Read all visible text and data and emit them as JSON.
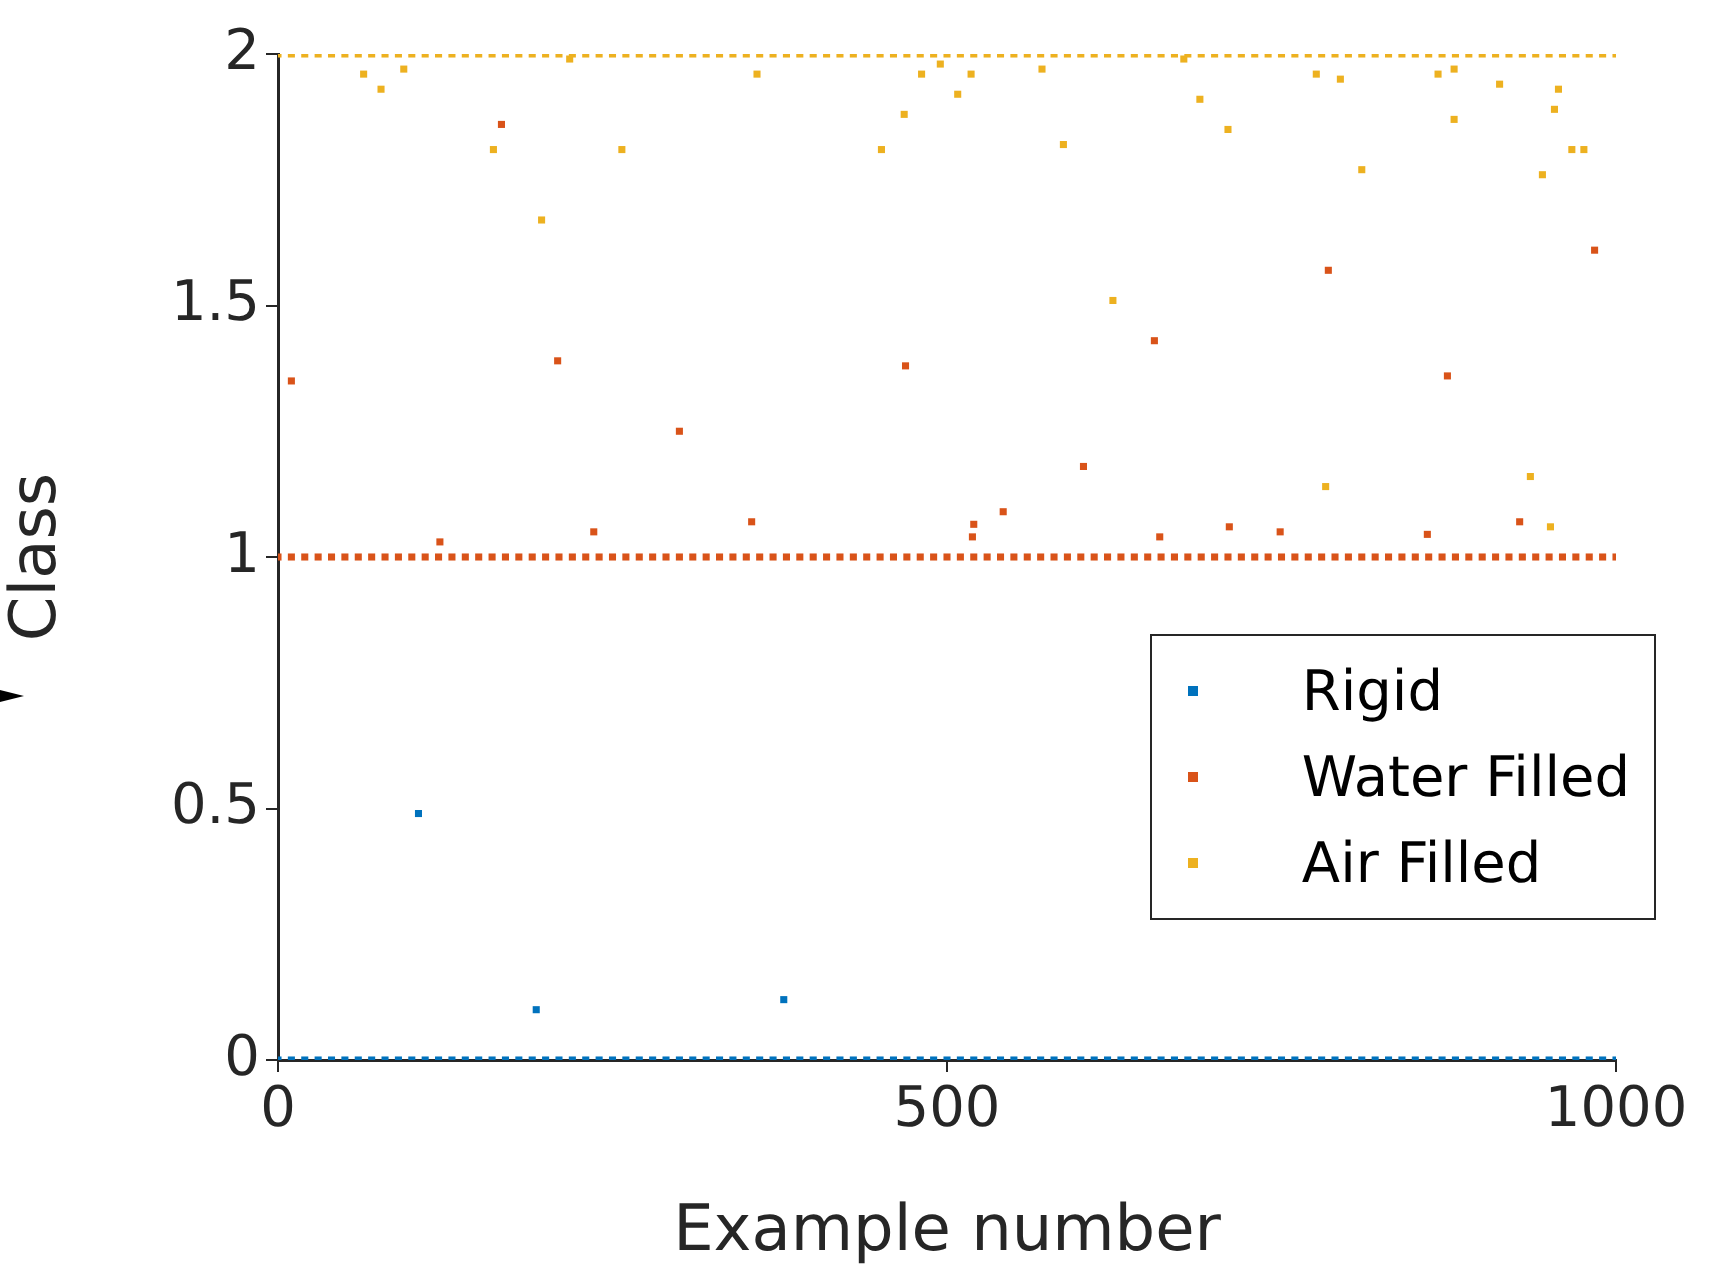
{
  "chart_data": {
    "type": "scatter",
    "xlabel": "Example number",
    "ylabel": "Class",
    "xlim": [
      0,
      1000
    ],
    "ylim": [
      0,
      2
    ],
    "xticks": [
      0,
      500,
      1000
    ],
    "yticks": [
      0,
      0.5,
      1,
      1.5,
      2
    ],
    "grid": false,
    "legend": "bottom right",
    "marker": "square",
    "series": [
      {
        "name": "Rigid",
        "color": "#0072bd",
        "x": [
          0,
          10,
          20,
          30,
          40,
          50,
          60,
          70,
          80,
          90,
          100,
          110,
          120,
          130,
          140,
          150,
          160,
          170,
          180,
          190,
          200,
          210,
          220,
          230,
          240,
          250,
          260,
          270,
          280,
          290,
          300,
          310,
          320,
          330,
          340,
          350,
          360,
          370,
          380,
          390,
          400,
          410,
          420,
          430,
          440,
          450,
          460,
          470,
          480,
          490,
          500,
          510,
          520,
          530,
          540,
          550,
          560,
          570,
          580,
          590,
          600,
          610,
          620,
          630,
          640,
          650,
          660,
          670,
          680,
          690,
          700,
          710,
          720,
          730,
          740,
          750,
          760,
          770,
          780,
          790,
          800,
          810,
          820,
          830,
          840,
          850,
          860,
          870,
          880,
          890,
          900,
          910,
          920,
          930,
          940,
          950,
          960,
          970,
          980,
          990,
          1000,
          105,
          193,
          378
        ],
        "values": [
          0,
          0,
          0,
          0,
          0,
          0,
          0,
          0,
          0,
          0,
          0,
          0,
          0,
          0,
          0,
          0,
          0,
          0,
          0,
          0,
          0,
          0,
          0,
          0,
          0,
          0,
          0,
          0,
          0,
          0,
          0,
          0,
          0,
          0,
          0,
          0,
          0,
          0,
          0,
          0,
          0,
          0,
          0,
          0,
          0,
          0,
          0,
          0,
          0,
          0,
          0,
          0,
          0,
          0,
          0,
          0,
          0,
          0,
          0,
          0,
          0,
          0,
          0,
          0,
          0,
          0,
          0,
          0,
          0,
          0,
          0,
          0,
          0,
          0,
          0,
          0,
          0,
          0,
          0,
          0,
          0,
          0,
          0,
          0,
          0,
          0,
          0,
          0,
          0,
          0,
          0,
          0,
          0,
          0,
          0,
          0,
          0,
          0,
          0,
          0,
          0,
          0.49,
          0.1,
          0.12
        ]
      },
      {
        "name": "Water Filled",
        "color": "#d95319",
        "x": [
          0,
          10,
          20,
          30,
          40,
          50,
          60,
          70,
          80,
          90,
          100,
          110,
          120,
          130,
          140,
          150,
          160,
          170,
          180,
          190,
          200,
          210,
          220,
          230,
          240,
          250,
          260,
          270,
          280,
          290,
          300,
          310,
          320,
          330,
          340,
          350,
          360,
          370,
          380,
          390,
          400,
          410,
          420,
          430,
          440,
          450,
          460,
          470,
          480,
          490,
          500,
          510,
          520,
          530,
          540,
          550,
          560,
          570,
          580,
          590,
          600,
          610,
          620,
          630,
          640,
          650,
          660,
          670,
          680,
          690,
          700,
          710,
          720,
          730,
          740,
          750,
          760,
          770,
          780,
          790,
          800,
          810,
          820,
          830,
          840,
          850,
          860,
          870,
          880,
          890,
          900,
          910,
          920,
          930,
          940,
          950,
          960,
          970,
          980,
          990,
          1000,
          10,
          209,
          300,
          167,
          469,
          785,
          655,
          874,
          984,
          602,
          121,
          236,
          354,
          520,
          519,
          542,
          659,
          711,
          749,
          859,
          928
        ],
        "values": [
          1,
          1,
          1,
          1,
          1,
          1,
          1,
          1,
          1,
          1,
          1,
          1,
          1,
          1,
          1,
          1,
          1,
          1,
          1,
          1,
          1,
          1,
          1,
          1,
          1,
          1,
          1,
          1,
          1,
          1,
          1,
          1,
          1,
          1,
          1,
          1,
          1,
          1,
          1,
          1,
          1,
          1,
          1,
          1,
          1,
          1,
          1,
          1,
          1,
          1,
          1,
          1,
          1,
          1,
          1,
          1,
          1,
          1,
          1,
          1,
          1,
          1,
          1,
          1,
          1,
          1,
          1,
          1,
          1,
          1,
          1,
          1,
          1,
          1,
          1,
          1,
          1,
          1,
          1,
          1,
          1,
          1,
          1,
          1,
          1,
          1,
          1,
          1,
          1,
          1,
          1,
          1,
          1,
          1,
          1,
          1,
          1,
          1,
          1,
          1,
          1,
          1.35,
          1.39,
          1.25,
          1.86,
          1.38,
          1.57,
          1.43,
          1.36,
          1.61,
          1.18,
          1.03,
          1.05,
          1.07,
          1.065,
          1.04,
          1.09,
          1.04,
          1.06,
          1.05,
          1.045,
          1.07
        ]
      },
      {
        "name": "Air Filled",
        "color": "#edb120",
        "x": [
          0,
          10,
          20,
          30,
          40,
          50,
          60,
          70,
          80,
          90,
          100,
          110,
          120,
          130,
          140,
          150,
          160,
          170,
          180,
          190,
          200,
          210,
          220,
          230,
          240,
          250,
          260,
          270,
          280,
          290,
          300,
          310,
          320,
          330,
          340,
          350,
          360,
          370,
          380,
          390,
          400,
          410,
          420,
          430,
          440,
          450,
          460,
          470,
          480,
          490,
          500,
          510,
          520,
          530,
          540,
          550,
          560,
          570,
          580,
          590,
          600,
          610,
          620,
          630,
          640,
          650,
          660,
          670,
          680,
          690,
          700,
          710,
          720,
          730,
          740,
          750,
          760,
          770,
          780,
          790,
          800,
          810,
          820,
          830,
          840,
          850,
          860,
          870,
          880,
          890,
          900,
          910,
          920,
          930,
          940,
          950,
          960,
          970,
          980,
          990,
          1000,
          64,
          77,
          94,
          161,
          197,
          257,
          218,
          358,
          451,
          468,
          481,
          495,
          508,
          518,
          571,
          587,
          624,
          689,
          710,
          677,
          776,
          794,
          810,
          783,
          867,
          879,
          879,
          913,
          957,
          954,
          945,
          967,
          976,
          936,
          951
        ],
        "values": [
          2,
          2,
          2,
          2,
          2,
          2,
          2,
          2,
          2,
          2,
          2,
          2,
          2,
          2,
          2,
          2,
          2,
          2,
          2,
          2,
          2,
          2,
          2,
          2,
          2,
          2,
          2,
          2,
          2,
          2,
          2,
          2,
          2,
          2,
          2,
          2,
          2,
          2,
          2,
          2,
          2,
          2,
          2,
          2,
          2,
          2,
          2,
          2,
          2,
          2,
          2,
          2,
          2,
          2,
          2,
          2,
          2,
          2,
          2,
          2,
          2,
          2,
          2,
          2,
          2,
          2,
          2,
          2,
          2,
          2,
          2,
          2,
          2,
          2,
          2,
          2,
          2,
          2,
          2,
          2,
          2,
          2,
          2,
          2,
          2,
          2,
          2,
          2,
          2,
          2,
          2,
          2,
          2,
          2,
          2,
          2,
          2,
          2,
          2,
          2,
          2,
          1.96,
          1.93,
          1.97,
          1.81,
          1.67,
          1.81,
          1.99,
          1.96,
          1.81,
          1.88,
          1.96,
          1.98,
          1.92,
          1.96,
          1.97,
          1.82,
          1.51,
          1.91,
          1.85,
          1.99,
          1.96,
          1.95,
          1.77,
          1.14,
          1.96,
          1.97,
          1.87,
          1.94,
          1.93,
          1.89,
          1.76,
          1.81,
          1.81,
          1.16,
          1.06
        ]
      }
    ]
  }
}
